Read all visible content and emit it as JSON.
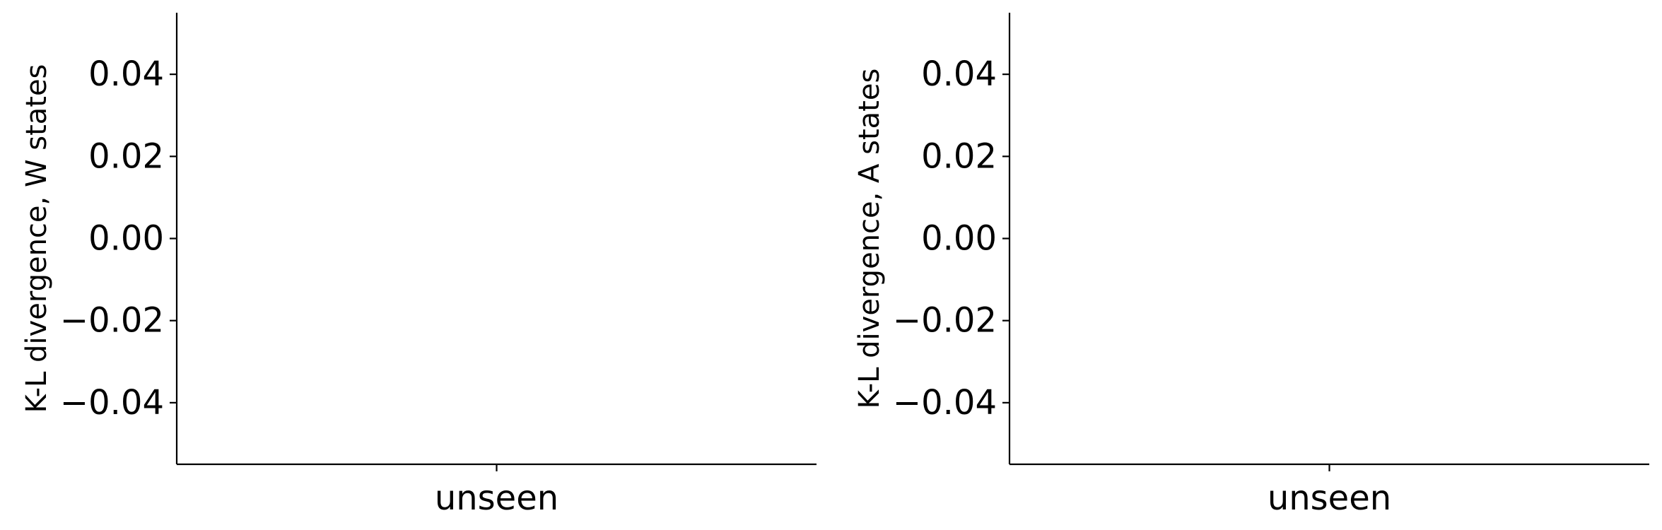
{
  "chart_data": [
    {
      "type": "bar",
      "categories": [
        "unseen"
      ],
      "series": [],
      "title": "",
      "xlabel": "",
      "ylabel": "K-L divergence, W states",
      "ylim": [
        -0.055,
        0.055
      ],
      "yticks": [
        -0.04,
        -0.02,
        0.0,
        0.02,
        0.04
      ],
      "ytick_labels": [
        "−0.04",
        "−0.02",
        "0.00",
        "0.02",
        "0.04"
      ],
      "grid": false,
      "legend": "none"
    },
    {
      "type": "bar",
      "categories": [
        "unseen"
      ],
      "series": [],
      "title": "",
      "xlabel": "",
      "ylabel": "K-L divergence, A states",
      "ylim": [
        -0.055,
        0.055
      ],
      "yticks": [
        -0.04,
        -0.02,
        0.0,
        0.02,
        0.04
      ],
      "ytick_labels": [
        "−0.04",
        "−0.02",
        "0.00",
        "0.02",
        "0.04"
      ],
      "grid": false,
      "legend": "none"
    }
  ],
  "colors": {
    "axis": "#000000",
    "background": "#ffffff"
  }
}
